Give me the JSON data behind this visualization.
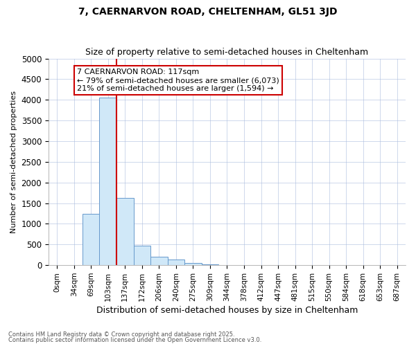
{
  "title1": "7, CAERNARVON ROAD, CHELTENHAM, GL51 3JD",
  "title2": "Size of property relative to semi-detached houses in Cheltenham",
  "xlabel": "Distribution of semi-detached houses by size in Cheltenham",
  "ylabel": "Number of semi-detached properties",
  "categories": [
    "0sqm",
    "34sqm",
    "69sqm",
    "103sqm",
    "137sqm",
    "172sqm",
    "206sqm",
    "240sqm",
    "275sqm",
    "309sqm",
    "344sqm",
    "378sqm",
    "412sqm",
    "447sqm",
    "481sqm",
    "515sqm",
    "550sqm",
    "584sqm",
    "618sqm",
    "653sqm",
    "687sqm"
  ],
  "values": [
    0,
    0,
    1250,
    4050,
    1620,
    480,
    200,
    130,
    55,
    20,
    5,
    0,
    0,
    0,
    0,
    0,
    0,
    0,
    0,
    0,
    0
  ],
  "bar_color": "#d0e8f8",
  "bar_edge_color": "#6699cc",
  "vline_x": 3.5,
  "vline_color": "#cc0000",
  "annotation_text": "7 CAERNARVON ROAD: 117sqm\n← 79% of semi-detached houses are smaller (6,073)\n21% of semi-detached houses are larger (1,594) →",
  "annotation_box_facecolor": "#ffffff",
  "annotation_box_edgecolor": "#cc0000",
  "ylim": [
    0,
    5000
  ],
  "yticks": [
    0,
    500,
    1000,
    1500,
    2000,
    2500,
    3000,
    3500,
    4000,
    4500,
    5000
  ],
  "footer1": "Contains HM Land Registry data © Crown copyright and database right 2025.",
  "footer2": "Contains public sector information licensed under the Open Government Licence v3.0.",
  "bg_color": "#ffffff",
  "plot_bg_color": "#ffffff",
  "grid_color": "#aabbdd"
}
